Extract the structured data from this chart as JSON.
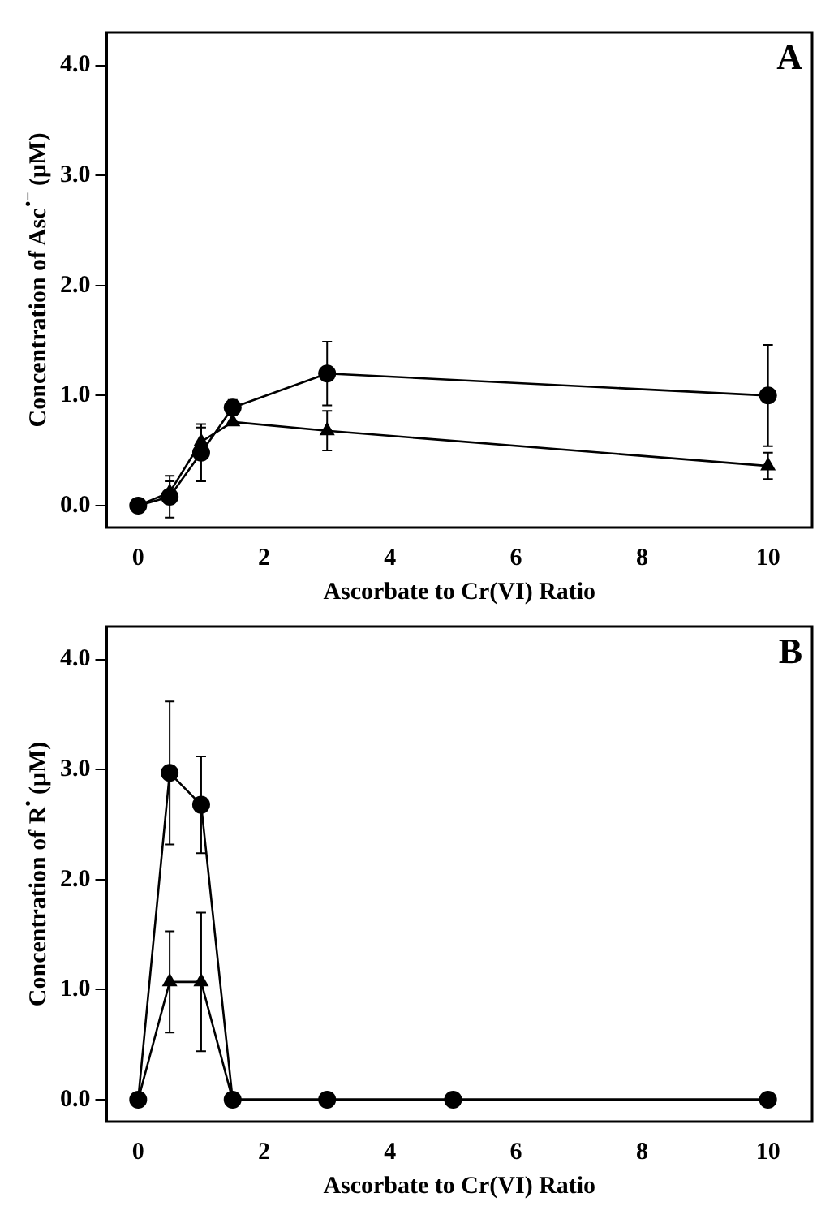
{
  "chart_data": [
    {
      "type": "line",
      "title": "A",
      "xlabel": "Ascorbate to Cr(VI) Ratio",
      "ylabel": "Concentration of Asc$^{•−}$ (μM)",
      "xlim": [
        -0.5,
        10.7
      ],
      "xticks": [
        0,
        2,
        4,
        6,
        8,
        10
      ],
      "ylim": [
        -0.2,
        4.3
      ],
      "yticks": [
        {
          "value": 0,
          "label": "0.0"
        },
        {
          "value": 1,
          "label": "1.0"
        },
        {
          "value": 2,
          "label": "2.0"
        },
        {
          "value": 3,
          "label": "3.0"
        },
        {
          "value": 4,
          "label": "4.0"
        }
      ],
      "grid": false,
      "legend": false,
      "line_style": "solid",
      "series": [
        {
          "color": "#000000",
          "marker": "circle",
          "x": [
            0,
            0.5,
            1,
            1.5,
            3,
            10
          ],
          "values": [
            0,
            0.08,
            0.48,
            0.89,
            1.2,
            1.0
          ],
          "errors": [
            null,
            0.19,
            0.26,
            0.07,
            0.29,
            0.46
          ]
        },
        {
          "color": "#000000",
          "marker": "triangle",
          "x": [
            0,
            0.5,
            1,
            1.5,
            3,
            10
          ],
          "values": [
            0,
            0.12,
            0.58,
            0.76,
            0.68,
            0.36
          ],
          "errors": [
            null,
            0.1,
            0.13,
            null,
            0.18,
            0.12
          ]
        }
      ]
    },
    {
      "type": "line",
      "title": "B",
      "xlabel": "Ascorbate to Cr(VI) Ratio",
      "ylabel": "Concentration of R$^{•}$ (μM)",
      "xlim": [
        -0.5,
        10.7
      ],
      "xticks": [
        0,
        2,
        4,
        6,
        8,
        10
      ],
      "ylim": [
        -0.2,
        4.3
      ],
      "yticks": [
        {
          "value": 0,
          "label": "0.0"
        },
        {
          "value": 1,
          "label": "1.0"
        },
        {
          "value": 2,
          "label": "2.0"
        },
        {
          "value": 3,
          "label": "3.0"
        },
        {
          "value": 4,
          "label": "4.0"
        }
      ],
      "grid": false,
      "legend": false,
      "line_style": "solid",
      "series": [
        {
          "color": "#000000",
          "marker": "circle",
          "x": [
            0,
            0.5,
            1,
            1.5,
            3,
            5,
            10
          ],
          "values": [
            0,
            2.97,
            2.68,
            0,
            0,
            0,
            0
          ],
          "errors": [
            null,
            0.65,
            0.44,
            null,
            null,
            null,
            null
          ]
        },
        {
          "color": "#000000",
          "marker": "triangle",
          "x": [
            0,
            0.5,
            1,
            1.5,
            3,
            5,
            10
          ],
          "values": [
            0,
            1.07,
            1.07,
            0,
            0,
            0,
            0
          ],
          "errors": [
            null,
            0.46,
            0.63,
            null,
            null,
            null,
            null
          ]
        }
      ]
    }
  ]
}
